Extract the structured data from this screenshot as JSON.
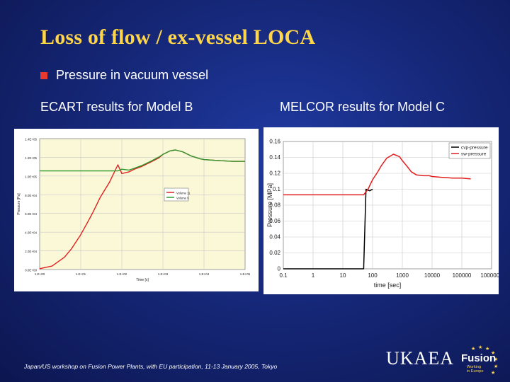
{
  "slide": {
    "title": "Loss of flow / ex-vessel LOCA",
    "bullet": "Pressure in vacuum vessel",
    "left_heading": "ECART results for Model B",
    "right_heading": "MELCOR results for Model C",
    "footer": "Japan/US workshop on Fusion Power Plants, with EU participation, 11-13 January 2005, Tokyo",
    "logo": {
      "org": "UKAEA",
      "brand": "Fusion",
      "tagline_1": "Working",
      "tagline_2": "in Europe"
    }
  },
  "colors": {
    "title": "#ffd54a",
    "bullet": "#e63a2e",
    "series_red": "#e02020",
    "series_green": "#2e9a2e",
    "series_black": "#000000"
  },
  "chart_data": [
    {
      "type": "line",
      "title": "",
      "xlabel": "Time [s]",
      "ylabel": "Pressure [Pa]",
      "x_scale": "log",
      "xlim": [
        1,
        100000
      ],
      "ylim": [
        0,
        150000
      ],
      "x_ticks": [
        "1.E+00",
        "1.E+01",
        "1.E+02",
        "1.E+03",
        "1.E+04",
        "1.E+05"
      ],
      "y_ticks": [
        "0.0E+00",
        "2.0E+04",
        "4.0E+04",
        "6.0E+04",
        "8.0E+04",
        "1.0E+05",
        "1.2E+05",
        "1.4E+05"
      ],
      "grid": true,
      "legend_position": "middle-right",
      "series": [
        {
          "name": "Volume 11",
          "color": "#e02020",
          "x": [
            1,
            2,
            4,
            6,
            10,
            15,
            20,
            30,
            50,
            80,
            100,
            150,
            200,
            300,
            500,
            800,
            1000,
            1500,
            2000,
            3000,
            5000,
            8000,
            10000,
            20000,
            50000,
            100000
          ],
          "y": [
            1000,
            4000,
            14000,
            24000,
            40000,
            55000,
            66000,
            83000,
            100000,
            120000,
            110000,
            112000,
            115000,
            118000,
            123000,
            128000,
            132000,
            136000,
            137000,
            135000,
            130000,
            127000,
            126000,
            125000,
            124000,
            124000
          ]
        },
        {
          "name": "Volume 9",
          "color": "#2e9a2e",
          "x": [
            1,
            10,
            50,
            80,
            100,
            150,
            200,
            300,
            500,
            800,
            1000,
            1500,
            2000,
            3000,
            5000,
            8000,
            10000,
            20000,
            50000,
            100000
          ],
          "y": [
            113000,
            113000,
            113000,
            113000,
            115000,
            114000,
            116000,
            119000,
            124000,
            129000,
            132000,
            136000,
            137000,
            135000,
            130000,
            127000,
            126000,
            125000,
            124000,
            124000
          ]
        }
      ]
    },
    {
      "type": "line",
      "title": "",
      "xlabel": "time [sec]",
      "ylabel": "Pressure [MPa]",
      "x_scale": "log",
      "xlim": [
        0.1,
        1000000
      ],
      "ylim": [
        0,
        0.16
      ],
      "x_ticks": [
        "0.1",
        "1",
        "10",
        "100",
        "1000",
        "10000",
        "100000",
        "1000000"
      ],
      "y_ticks": [
        "0",
        "0.02",
        "0.04",
        "0.06",
        "0.08",
        "0.1",
        "0.12",
        "0.14",
        "0.16"
      ],
      "grid": true,
      "legend_position": "top-right",
      "series": [
        {
          "name": "cvp-pressure",
          "color": "#000000",
          "x": [
            0.1,
            10,
            40,
            50,
            60,
            80,
            100
          ],
          "y": [
            0,
            0,
            0,
            0,
            0.1,
            0.098,
            0.1
          ]
        },
        {
          "name": "sw-pressure",
          "color": "#e02020",
          "x": [
            0.1,
            10,
            30,
            50,
            70,
            100,
            150,
            200,
            300,
            500,
            800,
            1000,
            1500,
            2000,
            3000,
            5000,
            8000,
            10000,
            20000,
            50000,
            100000,
            200000
          ],
          "y": [
            0.093,
            0.093,
            0.093,
            0.093,
            0.1,
            0.112,
            0.122,
            0.13,
            0.139,
            0.144,
            0.141,
            0.136,
            0.128,
            0.122,
            0.118,
            0.117,
            0.117,
            0.116,
            0.115,
            0.114,
            0.114,
            0.113
          ]
        }
      ]
    }
  ]
}
